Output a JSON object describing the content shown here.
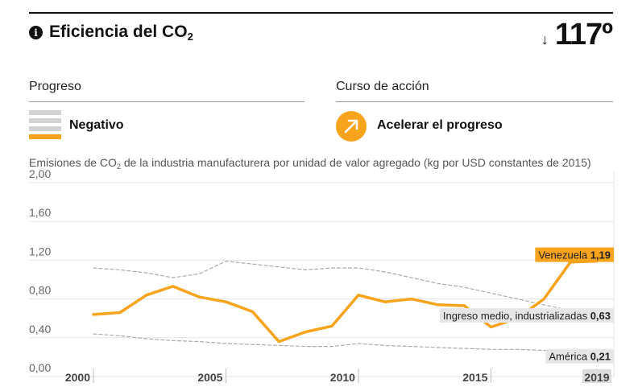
{
  "header": {
    "info_icon": "info-icon",
    "title_main": "Eficiencia del CO",
    "title_sub": "2",
    "rank_arrow": "↓",
    "rank_value": "117º"
  },
  "progress": {
    "label": "Progreso",
    "status": "Negativo",
    "icon": "progress-bars-icon",
    "colors": {
      "filled": "#f7a31c",
      "empty": "#d3d3d3"
    }
  },
  "course": {
    "label": "Curso de acción",
    "status": "Acelerar el progreso",
    "icon": "arrow-up-right-icon",
    "color": "#f7a31c"
  },
  "caption": {
    "before": "Emisiones de CO",
    "sub": "2",
    "after": " de la industria manufacturera por unidad de valor agregado (kg por USD constantes de 2015)"
  },
  "chart_data": {
    "type": "line",
    "x_range": [
      2000,
      2019
    ],
    "ylim": [
      0,
      2.0
    ],
    "y_ticks": [
      "0,00",
      "0,40",
      "0,80",
      "1,20",
      "1,60",
      "2,00"
    ],
    "x_ticks": [
      "2000",
      "2005",
      "2010",
      "2015",
      "2019"
    ],
    "grid": true,
    "series": [
      {
        "name": "Venezuela",
        "value_label": "1,19",
        "color": "#f7a31c",
        "style": "solid",
        "x": [
          2000,
          2001,
          2002,
          2003,
          2004,
          2005,
          2006,
          2007,
          2008,
          2009,
          2010,
          2011,
          2012,
          2013,
          2014,
          2015,
          2016,
          2017,
          2018,
          2019
        ],
        "y": [
          0.64,
          0.66,
          0.84,
          0.93,
          0.82,
          0.77,
          0.67,
          0.36,
          0.46,
          0.52,
          0.84,
          0.77,
          0.8,
          0.74,
          0.73,
          0.51,
          0.6,
          0.8,
          1.18,
          1.19
        ]
      },
      {
        "name": "Ingreso medio, industrializadas",
        "value_label": "0,63",
        "color": "#aaaaaa",
        "style": "dashed",
        "x": [
          2000,
          2001,
          2002,
          2003,
          2004,
          2005,
          2006,
          2007,
          2008,
          2009,
          2010,
          2011,
          2012,
          2013,
          2014,
          2015,
          2016,
          2017,
          2018,
          2019
        ],
        "y": [
          1.12,
          1.1,
          1.07,
          1.02,
          1.06,
          1.19,
          1.16,
          1.13,
          1.1,
          1.12,
          1.12,
          1.08,
          1.02,
          0.96,
          0.92,
          0.86,
          0.8,
          0.74,
          0.68,
          0.63
        ]
      },
      {
        "name": "América",
        "value_label": "0,21",
        "color": "#aaaaaa",
        "style": "dashed",
        "x": [
          2000,
          2001,
          2002,
          2003,
          2004,
          2005,
          2006,
          2007,
          2008,
          2009,
          2010,
          2011,
          2012,
          2013,
          2014,
          2015,
          2016,
          2017,
          2018,
          2019
        ],
        "y": [
          0.44,
          0.42,
          0.39,
          0.37,
          0.36,
          0.34,
          0.33,
          0.32,
          0.31,
          0.31,
          0.34,
          0.32,
          0.31,
          0.3,
          0.29,
          0.28,
          0.28,
          0.27,
          0.24,
          0.21
        ]
      }
    ]
  }
}
